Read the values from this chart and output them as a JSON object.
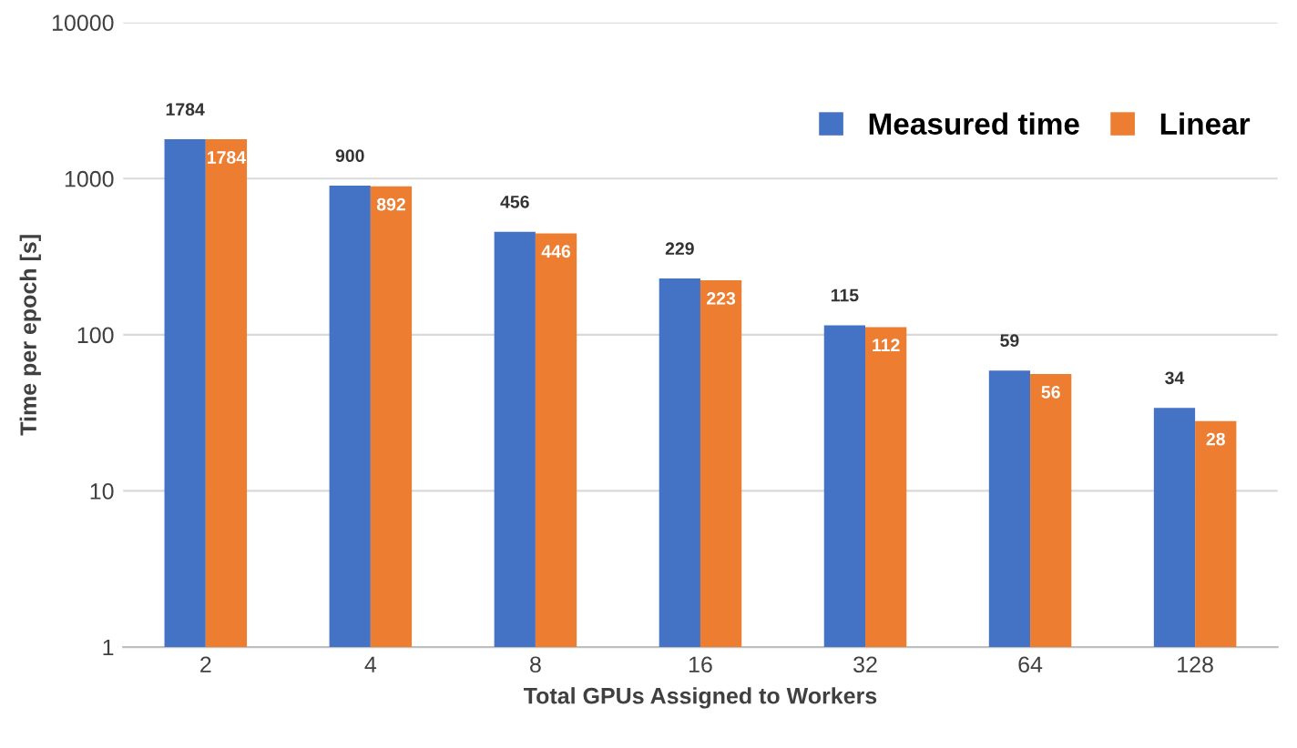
{
  "chart_data": {
    "type": "bar",
    "xlabel": "Total GPUs Assigned to Workers",
    "ylabel": "Time per epoch [s]",
    "categories": [
      "2",
      "4",
      "8",
      "16",
      "32",
      "64",
      "128"
    ],
    "series": [
      {
        "name": "Measured time",
        "color": "#4472c4",
        "values": [
          1784,
          900,
          456,
          229,
          115,
          59,
          34
        ]
      },
      {
        "name": "Linear",
        "color": "#ed7d31",
        "values": [
          1784,
          892,
          446,
          223,
          112,
          56,
          28
        ]
      }
    ],
    "log": true,
    "ylim": [
      1,
      10000
    ],
    "yticks": [
      1,
      10,
      100,
      1000,
      10000
    ],
    "grid": "y",
    "legend": "top right",
    "data_labels": true
  }
}
